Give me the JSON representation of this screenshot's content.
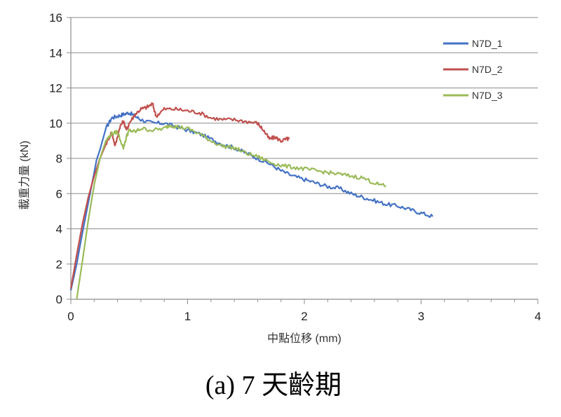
{
  "figure": {
    "caption": "(a) 7 天齡期"
  },
  "chart_data": {
    "type": "line",
    "xlabel": "中點位移 (mm)",
    "ylabel": "載重力量 (kN)",
    "xlim": [
      0,
      4
    ],
    "ylim": [
      0,
      16
    ],
    "x_ticks": [
      0,
      1,
      2,
      3,
      4
    ],
    "y_ticks": [
      0,
      2,
      4,
      6,
      8,
      10,
      12,
      14,
      16
    ],
    "grid": "horizontal",
    "legend": "top-right",
    "series": [
      {
        "name": "N7D_1",
        "color": "#4472C4",
        "points": [
          [
            0.0,
            0.5
          ],
          [
            0.05,
            2.0
          ],
          [
            0.1,
            3.8
          ],
          [
            0.15,
            5.5
          ],
          [
            0.2,
            7.2
          ],
          [
            0.22,
            7.9
          ],
          [
            0.25,
            8.5
          ],
          [
            0.3,
            9.7
          ],
          [
            0.35,
            10.3
          ],
          [
            0.4,
            10.4
          ],
          [
            0.45,
            10.5
          ],
          [
            0.5,
            10.6
          ],
          [
            0.55,
            10.4
          ],
          [
            0.6,
            10.2
          ],
          [
            0.7,
            10.0
          ],
          [
            0.8,
            10.0
          ],
          [
            0.9,
            9.8
          ],
          [
            1.0,
            9.6
          ],
          [
            1.1,
            9.4
          ],
          [
            1.2,
            9.1
          ],
          [
            1.3,
            8.8
          ],
          [
            1.4,
            8.6
          ],
          [
            1.5,
            8.3
          ],
          [
            1.6,
            8.0
          ],
          [
            1.7,
            7.7
          ],
          [
            1.8,
            7.3
          ],
          [
            1.9,
            7.0
          ],
          [
            2.0,
            6.8
          ],
          [
            2.1,
            6.6
          ],
          [
            2.2,
            6.4
          ],
          [
            2.3,
            6.3
          ],
          [
            2.4,
            6.0
          ],
          [
            2.5,
            5.8
          ],
          [
            2.6,
            5.6
          ],
          [
            2.7,
            5.4
          ],
          [
            2.8,
            5.3
          ],
          [
            2.9,
            5.1
          ],
          [
            3.0,
            4.9
          ],
          [
            3.1,
            4.7
          ]
        ]
      },
      {
        "name": "N7D_2",
        "color": "#C0504D",
        "points": [
          [
            0.0,
            0.6
          ],
          [
            0.05,
            2.5
          ],
          [
            0.1,
            4.3
          ],
          [
            0.15,
            5.8
          ],
          [
            0.2,
            7.0
          ],
          [
            0.25,
            8.0
          ],
          [
            0.3,
            8.8
          ],
          [
            0.35,
            9.5
          ],
          [
            0.38,
            8.7
          ],
          [
            0.42,
            9.8
          ],
          [
            0.45,
            10.1
          ],
          [
            0.48,
            9.6
          ],
          [
            0.5,
            10.0
          ],
          [
            0.55,
            10.5
          ],
          [
            0.6,
            10.8
          ],
          [
            0.65,
            10.9
          ],
          [
            0.7,
            11.1
          ],
          [
            0.73,
            10.4
          ],
          [
            0.8,
            10.8
          ],
          [
            0.9,
            10.8
          ],
          [
            1.0,
            10.7
          ],
          [
            1.1,
            10.6
          ],
          [
            1.2,
            10.3
          ],
          [
            1.3,
            10.2
          ],
          [
            1.4,
            10.2
          ],
          [
            1.5,
            10.1
          ],
          [
            1.6,
            10.0
          ],
          [
            1.65,
            9.6
          ],
          [
            1.7,
            9.1
          ],
          [
            1.75,
            9.2
          ],
          [
            1.8,
            9.0
          ],
          [
            1.85,
            9.1
          ],
          [
            1.87,
            9.1
          ]
        ]
      },
      {
        "name": "N7D_3",
        "color": "#9BBB59",
        "points": [
          [
            0.05,
            0.0
          ],
          [
            0.1,
            2.2
          ],
          [
            0.15,
            4.5
          ],
          [
            0.2,
            6.5
          ],
          [
            0.25,
            8.0
          ],
          [
            0.3,
            9.0
          ],
          [
            0.35,
            9.4
          ],
          [
            0.4,
            9.5
          ],
          [
            0.45,
            8.6
          ],
          [
            0.48,
            9.3
          ],
          [
            0.5,
            9.6
          ],
          [
            0.55,
            9.5
          ],
          [
            0.6,
            9.7
          ],
          [
            0.7,
            9.6
          ],
          [
            0.8,
            9.7
          ],
          [
            0.85,
            9.9
          ],
          [
            0.9,
            9.8
          ],
          [
            1.0,
            9.7
          ],
          [
            1.1,
            9.4
          ],
          [
            1.2,
            9.0
          ],
          [
            1.3,
            8.7
          ],
          [
            1.4,
            8.6
          ],
          [
            1.5,
            8.3
          ],
          [
            1.6,
            8.1
          ],
          [
            1.7,
            7.8
          ],
          [
            1.8,
            7.6
          ],
          [
            1.9,
            7.5
          ],
          [
            2.0,
            7.4
          ],
          [
            2.1,
            7.3
          ],
          [
            2.2,
            7.2
          ],
          [
            2.3,
            7.1
          ],
          [
            2.4,
            7.0
          ],
          [
            2.5,
            6.9
          ],
          [
            2.6,
            6.6
          ],
          [
            2.7,
            6.4
          ]
        ]
      }
    ]
  }
}
